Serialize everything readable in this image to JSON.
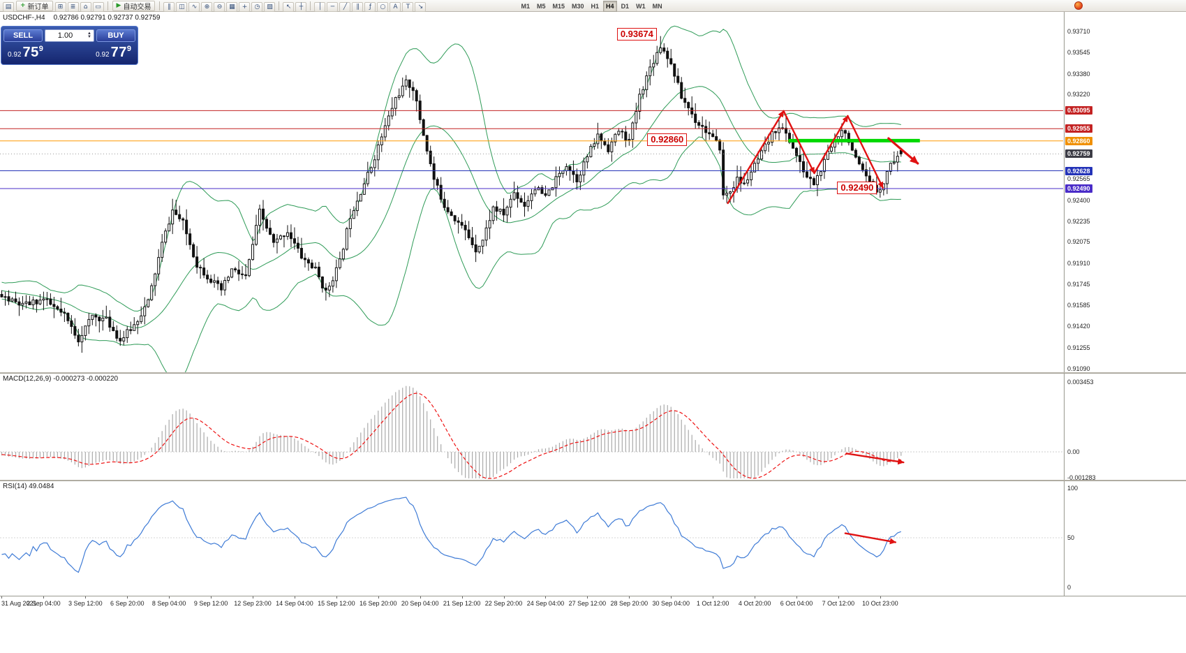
{
  "toolbar": {
    "new_order_label": "新订单",
    "autotrading_label": "自动交易",
    "icons_a": [
      {
        "name": "new-chart-icon",
        "glyph": "▤"
      }
    ],
    "icons_b": [
      {
        "name": "chart-windows-icon",
        "glyph": "⊞"
      },
      {
        "name": "market-watch-icon",
        "glyph": "≣"
      },
      {
        "name": "navigator-icon",
        "glyph": "⌂"
      },
      {
        "name": "terminal-icon",
        "glyph": "▭"
      }
    ],
    "icons_c": [
      {
        "name": "bar-chart-icon",
        "glyph": "‖"
      },
      {
        "name": "candlestick-chart-icon",
        "glyph": "◫"
      },
      {
        "name": "line-chart-icon",
        "glyph": "∿"
      },
      {
        "name": "zoom-in-icon",
        "glyph": "⊕"
      },
      {
        "name": "zoom-out-icon",
        "glyph": "⊖"
      },
      {
        "name": "tile-windows-icon",
        "glyph": "▦"
      },
      {
        "name": "indicators-icon",
        "glyph": "+"
      },
      {
        "name": "periods-icon",
        "glyph": "◷"
      },
      {
        "name": "templates-icon",
        "glyph": "▨"
      }
    ],
    "icons_d": [
      {
        "name": "cursor-icon",
        "glyph": "↖"
      },
      {
        "name": "crosshair-icon",
        "glyph": "┼"
      }
    ],
    "icons_e": [
      {
        "name": "vertical-line-icon",
        "glyph": "│"
      },
      {
        "name": "horizontal-line-icon",
        "glyph": "─"
      },
      {
        "name": "trendline-icon",
        "glyph": "╱"
      },
      {
        "name": "equidistant-channel-icon",
        "glyph": "∥"
      },
      {
        "name": "fibonacci-icon",
        "glyph": "ƒ"
      },
      {
        "name": "shapes-icon",
        "glyph": "○"
      },
      {
        "name": "text-icon",
        "glyph": "A"
      },
      {
        "name": "text-label-icon",
        "glyph": "T"
      },
      {
        "name": "arrows-icon",
        "glyph": "↘"
      }
    ],
    "timeframes": [
      "M1",
      "M5",
      "M15",
      "M30",
      "H1",
      "H4",
      "D1",
      "W1",
      "MN"
    ],
    "active_timeframe": "H4"
  },
  "chart": {
    "symbol_label": "USDCHF-,H4",
    "ohlc_text": "0.92786 0.92791 0.92737 0.92759",
    "one_click": {
      "sell_label": "SELL",
      "buy_label": "BUY",
      "volume": "1.00",
      "sell_price_small": "0.92",
      "sell_price_big": "75",
      "sell_price_sup": "9",
      "buy_price_small": "0.92",
      "buy_price_big": "77",
      "buy_price_sup": "9"
    }
  },
  "chart_data": {
    "type": "candlestick",
    "symbol": "USDCHF-",
    "timeframe": "H4",
    "title": "USDCHF-,H4",
    "current_ohlc": {
      "open": 0.92786,
      "high": 0.92791,
      "low": 0.92737,
      "close": 0.92759
    },
    "y_axis": {
      "visible_range": [
        0.91055,
        0.93862
      ],
      "plain_labels": [
        {
          "p": 0.9371,
          "t": "0.93710"
        },
        {
          "p": 0.93545,
          "t": "0.93545"
        },
        {
          "p": 0.9338,
          "t": "0.93380"
        },
        {
          "p": 0.9322,
          "t": "0.93220"
        },
        {
          "p": 0.92565,
          "t": "0.92565"
        },
        {
          "p": 0.924,
          "t": "0.92400"
        },
        {
          "p": 0.92235,
          "t": "0.92235"
        },
        {
          "p": 0.92075,
          "t": "0.92075"
        },
        {
          "p": 0.9191,
          "t": "0.91910"
        },
        {
          "p": 0.91745,
          "t": "0.91745"
        },
        {
          "p": 0.91585,
          "t": "0.91585"
        },
        {
          "p": 0.9142,
          "t": "0.91420"
        },
        {
          "p": 0.91255,
          "t": "0.91255"
        },
        {
          "p": 0.9109,
          "t": "0.91090"
        }
      ],
      "boxed_labels": [
        {
          "p": 0.93095,
          "t": "0.93095",
          "bg": "#c32222"
        },
        {
          "p": 0.92955,
          "t": "0.92955",
          "bg": "#c32222"
        },
        {
          "p": 0.9286,
          "t": "0.92860",
          "bg": "#f09000"
        },
        {
          "p": 0.92759,
          "t": "0.92759",
          "bg": "#3d3d46"
        },
        {
          "p": 0.92628,
          "t": "0.92628",
          "bg": "#2433b8"
        },
        {
          "p": 0.9249,
          "t": "0.92490",
          "bg": "#4a2cc8"
        }
      ]
    },
    "x_axis": {
      "labels": [
        "31 Aug 2021",
        "2 Sep 04:00",
        "3 Sep 12:00",
        "6 Sep 20:00",
        "8 Sep 04:00",
        "9 Sep 12:00",
        "12 Sep 23:00",
        "14 Sep 04:00",
        "15 Sep 12:00",
        "16 Sep 20:00",
        "20 Sep 04:00",
        "21 Sep 12:00",
        "22 Sep 20:00",
        "24 Sep 04:00",
        "27 Sep 12:00",
        "28 Sep 20:00",
        "30 Sep 04:00",
        "1 Oct 12:00",
        "4 Oct 20:00",
        "6 Oct 04:00",
        "7 Oct 12:00",
        "10 Oct 23:00"
      ],
      "label_step_candles": 12
    },
    "candles": {
      "slots": 305,
      "count": 259,
      "warmup": 20,
      "seed": 11,
      "noise": 0.00052,
      "wick": 0.0009,
      "close_path": [
        [
          -20,
          0.9176
        ],
        [
          -14,
          0.9166
        ],
        [
          -8,
          0.9174
        ],
        [
          0,
          0.9165
        ],
        [
          6,
          0.9158
        ],
        [
          12,
          0.9163
        ],
        [
          18,
          0.915
        ],
        [
          22,
          0.9132
        ],
        [
          26,
          0.915
        ],
        [
          30,
          0.9147
        ],
        [
          34,
          0.9131
        ],
        [
          38,
          0.9143
        ],
        [
          42,
          0.9161
        ],
        [
          46,
          0.9206
        ],
        [
          49,
          0.9232
        ],
        [
          52,
          0.9222
        ],
        [
          56,
          0.919
        ],
        [
          60,
          0.9178
        ],
        [
          63,
          0.917
        ],
        [
          66,
          0.9186
        ],
        [
          70,
          0.918
        ],
        [
          74,
          0.9231
        ],
        [
          78,
          0.9206
        ],
        [
          82,
          0.9216
        ],
        [
          86,
          0.9196
        ],
        [
          90,
          0.9186
        ],
        [
          93,
          0.9168
        ],
        [
          97,
          0.9192
        ],
        [
          100,
          0.9228
        ],
        [
          103,
          0.9247
        ],
        [
          106,
          0.9266
        ],
        [
          110,
          0.9297
        ],
        [
          113,
          0.9319
        ],
        [
          116,
          0.9331
        ],
        [
          118,
          0.9327
        ],
        [
          121,
          0.9291
        ],
        [
          124,
          0.9256
        ],
        [
          127,
          0.9236
        ],
        [
          130,
          0.9226
        ],
        [
          133,
          0.9216
        ],
        [
          136,
          0.9202
        ],
        [
          138,
          0.9209
        ],
        [
          141,
          0.9234
        ],
        [
          144,
          0.9229
        ],
        [
          147,
          0.9246
        ],
        [
          150,
          0.9236
        ],
        [
          153,
          0.925
        ],
        [
          156,
          0.9242
        ],
        [
          159,
          0.9256
        ],
        [
          162,
          0.9268
        ],
        [
          165,
          0.9256
        ],
        [
          168,
          0.9274
        ],
        [
          171,
          0.929
        ],
        [
          174,
          0.928
        ],
        [
          177,
          0.9294
        ],
        [
          180,
          0.9286
        ],
        [
          183,
          0.9321
        ],
        [
          186,
          0.9343
        ],
        [
          189,
          0.936
        ],
        [
          191,
          0.9352
        ],
        [
          193,
          0.9338
        ],
        [
          195,
          0.932
        ],
        [
          197,
          0.9312
        ],
        [
          199,
          0.9302
        ],
        [
          201,
          0.9297
        ],
        [
          203,
          0.9291
        ],
        [
          205,
          0.9284
        ],
        [
          206,
          0.9281
        ],
        [
          207,
          0.9243
        ],
        [
          209,
          0.9247
        ],
        [
          211,
          0.9256
        ],
        [
          213,
          0.9252
        ],
        [
          215,
          0.9262
        ],
        [
          217,
          0.9271
        ],
        [
          219,
          0.9281
        ],
        [
          221,
          0.9291
        ],
        [
          223,
          0.9298
        ],
        [
          225,
          0.9291
        ],
        [
          227,
          0.9281
        ],
        [
          229,
          0.9268
        ],
        [
          231,
          0.9258
        ],
        [
          233,
          0.9253
        ],
        [
          235,
          0.9263
        ],
        [
          237,
          0.9276
        ],
        [
          239,
          0.9286
        ],
        [
          241,
          0.9296
        ],
        [
          243,
          0.9287
        ],
        [
          245,
          0.9271
        ],
        [
          247,
          0.9261
        ],
        [
          249,
          0.9253
        ],
        [
          251,
          0.9247
        ],
        [
          253,
          0.9254
        ],
        [
          255,
          0.9269
        ],
        [
          258,
          0.92759
        ]
      ],
      "peak": {
        "index": 189,
        "high": 0.93674
      },
      "last": {
        "o": 0.92786,
        "h": 0.92791,
        "l": 0.92737,
        "c": 0.92759
      }
    },
    "indicators": {
      "bollinger": {
        "period": 20,
        "deviation": 2,
        "color": "#2e9b57"
      },
      "macd": {
        "label_full": "MACD(12,26,9) -0.000273 -0.000220",
        "fast": 12,
        "slow": 26,
        "signal": 9,
        "axis_labels": [
          "0.003453",
          "0.00",
          "-0.001283"
        ],
        "histogram_color": "#aaaaaa",
        "signal_color": "#ee1111"
      },
      "rsi": {
        "label_full": "RSI(14) 49.0484",
        "period": 14,
        "axis_labels": [
          "100",
          "50",
          "0"
        ],
        "color": "#3e7bd6"
      }
    },
    "levels": [
      {
        "price": 0.93095,
        "color": "#c32222",
        "width": 1
      },
      {
        "price": 0.92955,
        "color": "#c32222",
        "width": 1
      },
      {
        "price": 0.9286,
        "color": "#ff9900",
        "width": 1
      },
      {
        "price": 0.92628,
        "color": "#2433b8",
        "width": 1
      },
      {
        "price": 0.9249,
        "color": "#4a2cc8",
        "width": 1
      }
    ],
    "current_price_line": {
      "price": 0.92759,
      "color": "#999999"
    },
    "annotations": {
      "color": "#e01212",
      "trend_arrows": [
        {
          "name": "impulse-up-1",
          "from": [
            208.3,
            0.92376
          ],
          "to": [
            224.3,
            0.93092
          ],
          "width": 2.4
        },
        {
          "name": "impulse-down-1",
          "from": [
            224.3,
            0.93092
          ],
          "to": [
            233.1,
            0.92609
          ],
          "width": 2.4
        },
        {
          "name": "impulse-up-2",
          "from": [
            233.1,
            0.92609
          ],
          "to": [
            242.7,
            0.93054
          ],
          "width": 2.4
        },
        {
          "name": "impulse-down-2",
          "from": [
            242.7,
            0.93054
          ],
          "to": [
            252.8,
            0.92495
          ],
          "width": 2.4
        },
        {
          "name": "projection-arrow",
          "from": [
            254.4,
            0.9288
          ],
          "to": [
            262.8,
            0.92685
          ],
          "width": 3.2
        }
      ],
      "macd_arrow": {
        "from": [
          242.3,
          -8e-05
        ],
        "to": [
          258.7,
          -0.00052
        ],
        "width": 2.4
      },
      "rsi_arrow": {
        "from": [
          242.0,
          54.5
        ],
        "to": [
          256.4,
          45.5
        ],
        "width": 2.4
      },
      "support_zone": {
        "from_index": 225.7,
        "to_index": 263.4,
        "price": 0.92862,
        "color": "#00d800",
        "width": 5
      },
      "callouts": [
        {
          "text": "0.93674",
          "index": 176.5,
          "price": 0.93737
        },
        {
          "text": "0.92860",
          "index": 185.2,
          "price": 0.92918
        },
        {
          "text": "0.92490",
          "index": 239.7,
          "price": 0.92544
        }
      ]
    }
  }
}
